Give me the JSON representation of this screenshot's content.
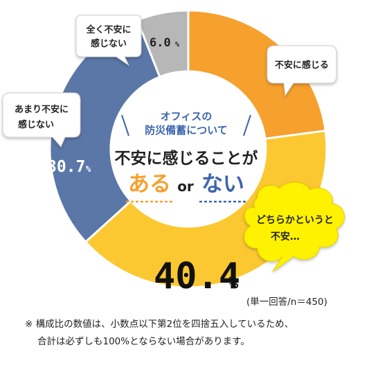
{
  "chart_data": {
    "type": "pie",
    "style": "donut",
    "title": "オフィスの防災備蓄について",
    "headline": "不安に感じることが",
    "headline_left": "ある",
    "headline_mid": "or",
    "headline_right": "ない",
    "slices": [
      {
        "label": "不安に感じる",
        "value": null,
        "color": "#f6a02e"
      },
      {
        "label": "どちらかというと不安…",
        "value": 40.4,
        "color": "#fcc831"
      },
      {
        "label": "あまり不安に感じない",
        "value": 30.7,
        "color": "#5a77a8"
      },
      {
        "label": "全く不安に感じない",
        "value": 6.0,
        "color": "#b7b7b7"
      }
    ],
    "colors": {
      "orange": "#f6a02e",
      "yellow": "#fcc831",
      "blue": "#5a77a8",
      "gray": "#b7b7b7",
      "accent_blue": "#3c64ad"
    }
  },
  "labels": {
    "title_line1": "オフィスの",
    "title_line2": "防災備蓄について",
    "fuan": "不安に感じる",
    "dochira1": "どちらかというと",
    "dochira2": "不安…",
    "amari1": "あまり不安に",
    "amari2": "感じない",
    "mattaku1": "全く不安に",
    "mattaku2": "感じない",
    "pct_404": "40.4",
    "pct_307": "30.7",
    "pct_60": "6.0",
    "pct_sign": "%"
  },
  "basis": "(単一回答/n＝450)",
  "note_line1": "※ 構成比の数値は、小数点以下第2位を四捨五入しているため、",
  "note_line2": "合計は必ずしも100%とならない場合があります。"
}
